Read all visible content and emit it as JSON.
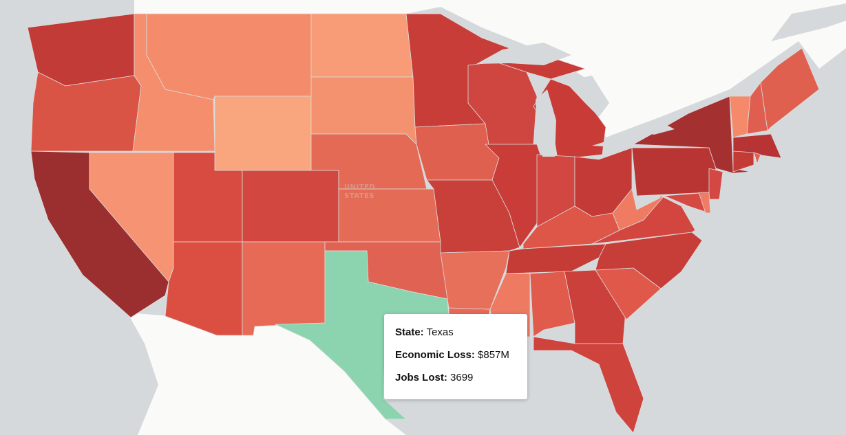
{
  "map": {
    "country_label_line1": "UNITED",
    "country_label_line2": "STATES",
    "water_color": "#d5d9dc",
    "land_color": "#fafaf8",
    "highlight_color": "#8cd4b0",
    "highlighted_state": "TX",
    "state_colors": {
      "WA": "#c23b36",
      "OR": "#d95445",
      "CA": "#9b2f2f",
      "ID": "#f58e6d",
      "NV": "#f59373",
      "MT": "#f48c6c",
      "WY": "#f9a57d",
      "UT": "#d84b41",
      "CO": "#d24840",
      "AZ": "#db4f43",
      "NM": "#e76a56",
      "ND": "#f89c77",
      "SD": "#f4926f",
      "NE": "#e46a55",
      "KS": "#e46c57",
      "OK": "#e06252",
      "TX": "#8cd4b0",
      "MN": "#c93d38",
      "IA": "#e0604f",
      "MO": "#c9403a",
      "AR": "#e6705a",
      "LA": "#e86a58",
      "WI": "#cf4640",
      "IL": "#c93c37",
      "MI": "#c93b37",
      "IN": "#d24741",
      "OH": "#c33a36",
      "KY": "#dd5648",
      "TN": "#c53c37",
      "MS": "#ee7a62",
      "AL": "#e05b4b",
      "GA": "#cb403a",
      "FL": "#cf433d",
      "SC": "#e0584a",
      "NC": "#c73d38",
      "VA": "#d34640",
      "WV": "#ef7b62",
      "PA": "#b83533",
      "NY": "#a53030",
      "NJ": "#d34843",
      "MD": "#d44942",
      "DE": "#ef7c64",
      "VT": "#f58a6b",
      "NH": "#e05e4f",
      "ME": "#e0604f",
      "MA": "#b83333",
      "CT": "#c43b36",
      "RI": "#e06252"
    }
  },
  "tooltip": {
    "state_label": "State:",
    "state_value": "Texas",
    "loss_label": "Economic Loss:",
    "loss_value": "$857M",
    "jobs_label": "Jobs Lost:",
    "jobs_value": "3699"
  }
}
